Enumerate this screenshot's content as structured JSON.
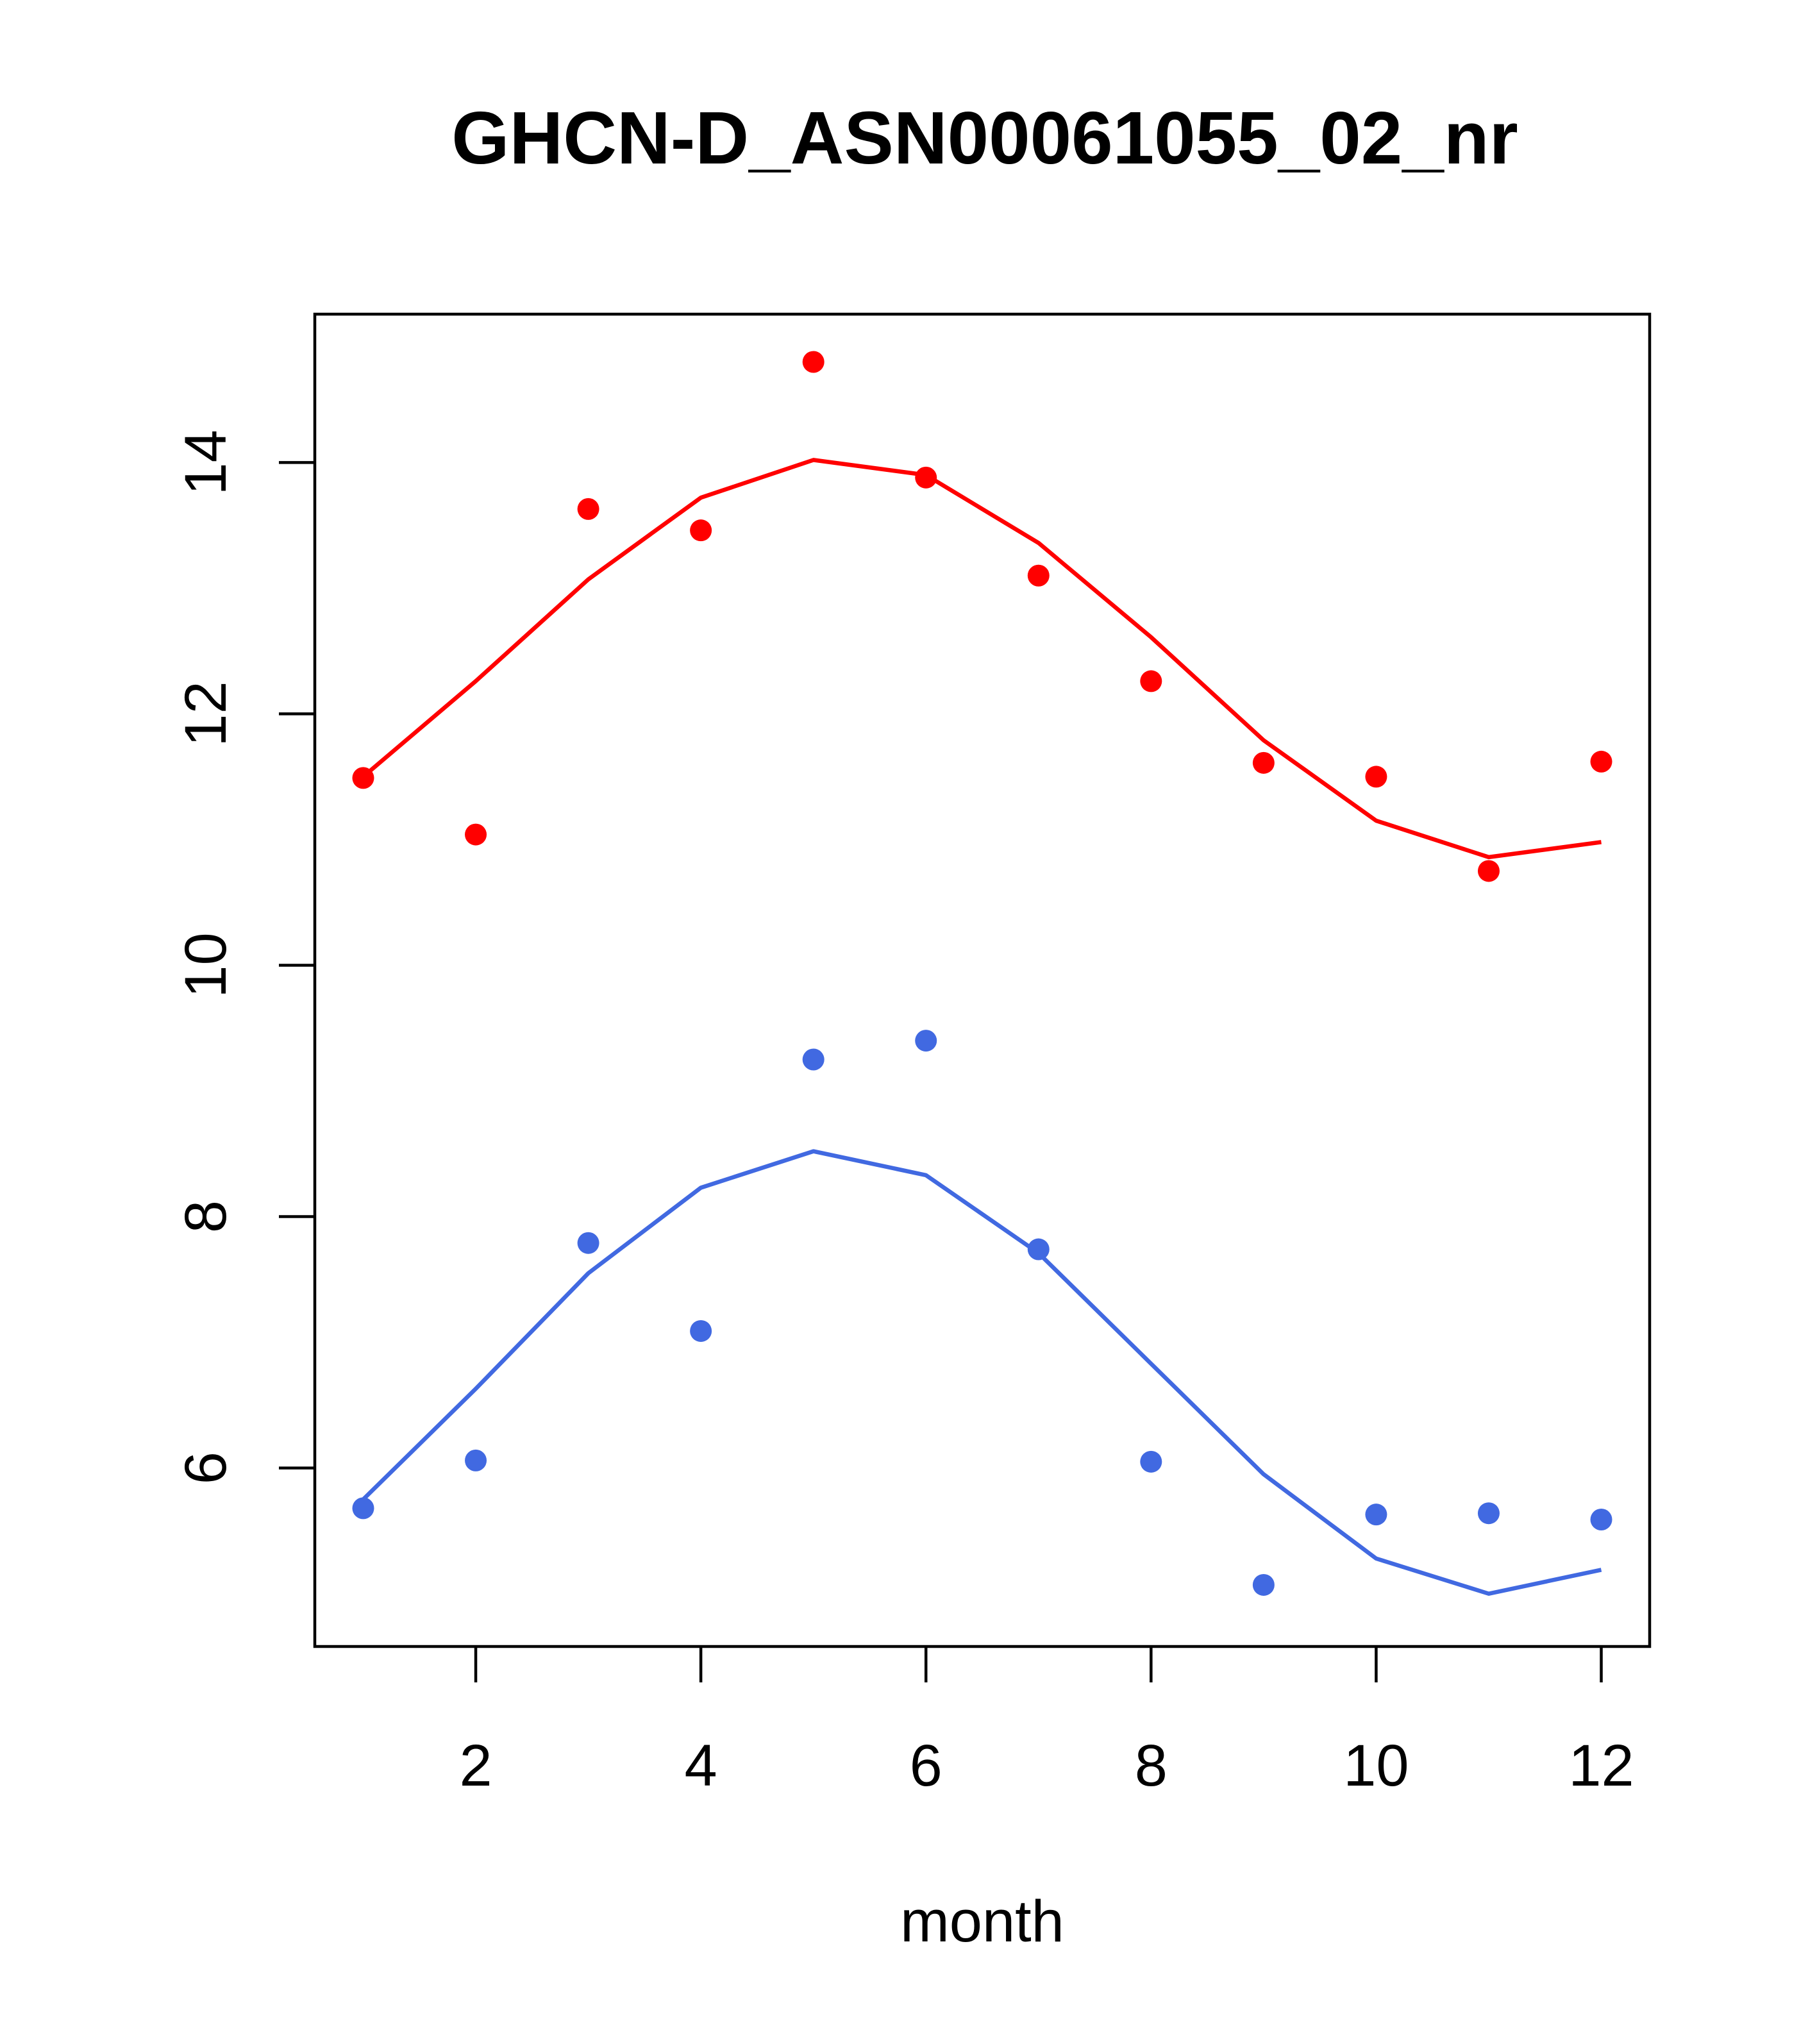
{
  "chart_data": {
    "type": "scatter",
    "title": "GHCN-D_ASN00061055_02_nr",
    "xlabel": "month",
    "ylabel": "",
    "xlim": [
      0.57,
      12.43
    ],
    "ylim": [
      4.58,
      15.18
    ],
    "x_ticks": [
      "2",
      "4",
      "6",
      "8",
      "10",
      "12"
    ],
    "y_ticks": [
      "6",
      "8",
      "10",
      "12",
      "14"
    ],
    "grid": false,
    "legend": "none",
    "series": [
      {
        "color": "#ff0000",
        "points_x": [
          1,
          2,
          3,
          4,
          5,
          6,
          7,
          8,
          9,
          10,
          11,
          12
        ],
        "points_y": [
          11.49,
          11.04,
          13.63,
          13.46,
          14.8,
          13.88,
          13.1,
          12.26,
          11.61,
          11.5,
          10.75,
          11.62
        ],
        "line_x": [
          1,
          2,
          3,
          4,
          5,
          6,
          7,
          8,
          9,
          10,
          11,
          12
        ],
        "line_y": [
          11.5,
          12.26,
          13.07,
          13.72,
          14.02,
          13.9,
          13.36,
          12.61,
          11.79,
          11.15,
          10.86,
          10.98
        ]
      },
      {
        "color": "#4169e1",
        "points_x": [
          1,
          2,
          3,
          4,
          5,
          6,
          7,
          8,
          9,
          10,
          11,
          12
        ],
        "points_y": [
          5.68,
          6.06,
          7.79,
          7.09,
          9.25,
          9.4,
          7.74,
          6.05,
          5.07,
          5.63,
          5.64,
          5.59
        ],
        "line_x": [
          1,
          2,
          3,
          4,
          5,
          6,
          7,
          8,
          9,
          10,
          11,
          12
        ],
        "line_y": [
          5.75,
          6.63,
          7.55,
          8.23,
          8.52,
          8.33,
          7.71,
          6.83,
          5.95,
          5.28,
          5.0,
          5.19
        ]
      }
    ]
  }
}
